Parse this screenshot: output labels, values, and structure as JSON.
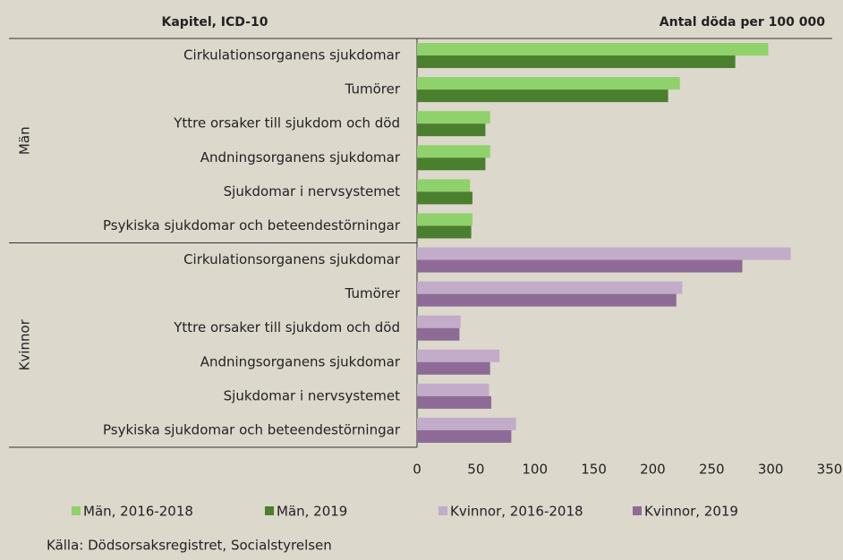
{
  "chart_data": {
    "type": "bar",
    "orientation": "horizontal",
    "category_header": "Kapitel, ICD-10",
    "value_header": "Antal döda per 100 000",
    "source": "Källa: Dödsorsaksregistret, Socialstyrelsen",
    "xlim": [
      0,
      350
    ],
    "xticks": [
      0,
      50,
      100,
      150,
      200,
      250,
      300,
      350
    ],
    "groups": [
      {
        "name": "Män",
        "categories": [
          "Cirkulationsorganens sjukdomar",
          "Tumörer",
          "Yttre orsaker till sjukdom och död",
          "Andningsorganens sjukdomar",
          "Sjukdomar i nervsystemet",
          "Psykiska sjukdomar och beteendestörningar"
        ],
        "series": [
          {
            "name": "Män, 2016-2018",
            "color": "#8fd16a",
            "values": [
              298,
              223,
              62,
              62,
              45,
              47
            ]
          },
          {
            "name": "Män, 2019",
            "color": "#4a7f2e",
            "values": [
              270,
              213,
              58,
              58,
              47,
              46
            ]
          }
        ]
      },
      {
        "name": "Kvinnor",
        "categories": [
          "Cirkulationsorganens sjukdomar",
          "Tumörer",
          "Yttre orsaker till sjukdom och död",
          "Andningsorganens sjukdomar",
          "Sjukdomar i nervsystemet",
          "Psykiska sjukdomar och beteendestörningar"
        ],
        "series": [
          {
            "name": "Kvinnor, 2016-2018",
            "color": "#c2acc9",
            "values": [
              317,
              225,
              37,
              70,
              61,
              84
            ]
          },
          {
            "name": "Kvinnor, 2019",
            "color": "#8e6b96",
            "values": [
              276,
              220,
              36,
              62,
              63,
              80
            ]
          }
        ]
      }
    ]
  }
}
